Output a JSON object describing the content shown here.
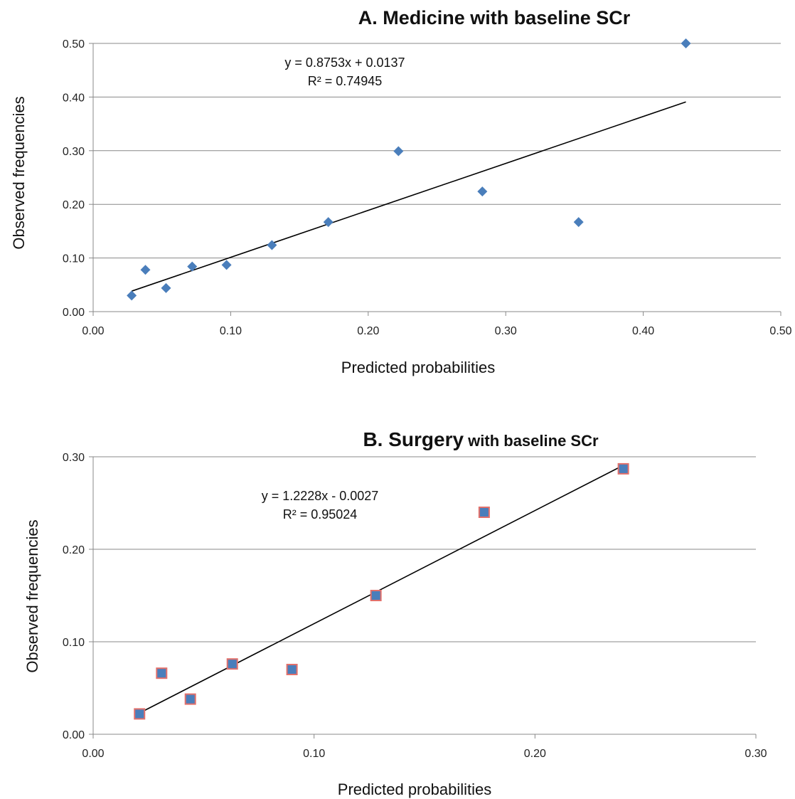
{
  "chart_data": [
    {
      "type": "scatter",
      "title": "A. Medicine with baseline SCr",
      "xlabel": "Predicted probabilities",
      "ylabel": "Observed frequencies",
      "xlim": [
        0,
        0.5
      ],
      "ylim": [
        0,
        0.5
      ],
      "xticks": [
        "0.00",
        "0.10",
        "0.20",
        "0.30",
        "0.40",
        "0.50"
      ],
      "yticks": [
        "0.00",
        "0.10",
        "0.20",
        "0.30",
        "0.40",
        "0.50"
      ],
      "grid": "horizontal",
      "marker": "diamond",
      "marker_color": "#4a7ebb",
      "x": [
        0.028,
        0.038,
        0.053,
        0.072,
        0.097,
        0.13,
        0.171,
        0.222,
        0.283,
        0.353,
        0.431
      ],
      "y": [
        0.03,
        0.078,
        0.044,
        0.084,
        0.087,
        0.124,
        0.167,
        0.299,
        0.224,
        0.167,
        0.5
      ],
      "trendline": {
        "slope": 0.8753,
        "intercept": 0.0137,
        "x_range": [
          0.028,
          0.431
        ]
      },
      "equation": "y = 0.8753x + 0.0137",
      "r_squared": "R² = 0.74945"
    },
    {
      "type": "scatter",
      "title_main": "B. Surgery",
      "title_rest": " with baseline SCr",
      "xlabel": "Predicted probabilities",
      "ylabel": "Observed frequencies",
      "xlim": [
        0,
        0.3
      ],
      "ylim": [
        0,
        0.3
      ],
      "xticks": [
        "0.00",
        "0.10",
        "0.20",
        "0.30"
      ],
      "yticks": [
        "0.00",
        "0.10",
        "0.20",
        "0.30"
      ],
      "grid": "horizontal",
      "marker": "square",
      "marker_color": "#4a7ebb",
      "marker_edge": "#e2706b",
      "x": [
        0.021,
        0.031,
        0.044,
        0.063,
        0.09,
        0.128,
        0.177,
        0.24
      ],
      "y": [
        0.022,
        0.066,
        0.038,
        0.076,
        0.07,
        0.15,
        0.24,
        0.287
      ],
      "trendline": {
        "slope": 1.2228,
        "intercept": -0.0027,
        "x_range": [
          0.021,
          0.24
        ]
      },
      "equation": "y = 1.2228x - 0.0027",
      "r_squared": "R² = 0.95024"
    }
  ]
}
